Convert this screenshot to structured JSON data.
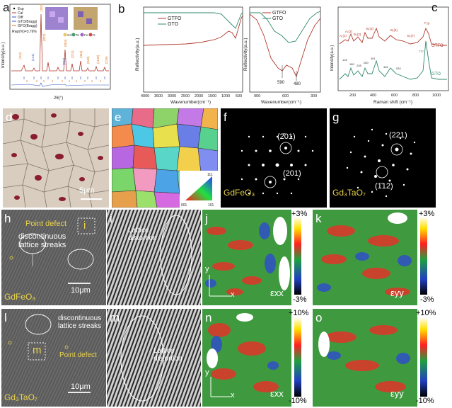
{
  "figure": {
    "panels": {
      "a": {
        "label": "a",
        "legend": [
          "Exp",
          "Cal",
          "Diff",
          "GTO(Bragg)",
          "GFO(Bragg)"
        ],
        "rwp": "Rwp(%)=3.76%",
        "xlabel": "2θ(°)",
        "ylabel": "Intensity(a.u.)",
        "peaks": [
          "(110)",
          "(121)",
          "(022)",
          "(202)",
          "(311)",
          "(004)",
          "(224)",
          "(404)",
          "(040)",
          "(1110)",
          "(226)"
        ],
        "atoms": [
          "Gd",
          "Ta",
          "Fe",
          "O"
        ]
      },
      "b": {
        "label": "b",
        "legend": [
          "GTFO",
          "GTO"
        ],
        "xlabel": "Wavenumber(cm⁻¹)",
        "ylabel": "Reflectivity(a.u.)",
        "xticks_left": [
          "4000",
          "3500",
          "3000",
          "2500",
          "2000",
          "1500",
          "1000",
          "500"
        ],
        "xticks_right": [
          "900",
          "600",
          "300"
        ],
        "annot": [
          "590",
          "480"
        ]
      },
      "c": {
        "label": "c",
        "xlabel": "Raman shift (cm⁻¹)",
        "ylabel": "Intensity(a.u.)",
        "xticks": [
          "200",
          "400",
          "600",
          "800",
          "1000"
        ],
        "curves": [
          "GTFO",
          "GTO"
        ],
        "modes": [
          "A₁(2)",
          "A₁(1)",
          "B₂(2)",
          "B₁(3)",
          "B₁(5)",
          "B₂(7)",
          "F₂g"
        ],
        "peaks": [
          "126",
          "180",
          "238",
          "280",
          "361",
          "439",
          "534",
          "777"
        ]
      },
      "d": {
        "label": "d"
      },
      "e": {
        "label": "e",
        "ipf": [
          "111",
          "001",
          "101"
        ]
      },
      "f": {
        "label": "f",
        "name": "GdFeO₃",
        "spots": [
          "(2̄01)",
          "(201)"
        ]
      },
      "g": {
        "label": "g",
        "name": "Gd₃TaO₇",
        "spots": [
          "(221)",
          "(1̄12)"
        ]
      },
      "h": {
        "label": "h",
        "name": "GdFeO₃",
        "scale": "10μm",
        "point_defect": "Point defect",
        "streaks": "discontinuous lattice streaks",
        "inset": "i"
      },
      "i": {
        "label": "i",
        "note": "Lattice distortion"
      },
      "j": {
        "label": "j",
        "max": "+3%",
        "min": "-3%",
        "eps": "εxx",
        "axis_x": "x",
        "axis_y": "y"
      },
      "k": {
        "label": "k",
        "max": "+3%",
        "min": "-3%",
        "eps": "εyy"
      },
      "l": {
        "label": "l",
        "name": "Gd₃TaO₇",
        "scale": "10μm",
        "streaks": "discontinuous lattice streaks",
        "point_defect": "Point defect",
        "inset": "m"
      },
      "m": {
        "label": "m",
        "note": "Lattice distortion"
      },
      "n": {
        "label": "n",
        "max": "+10%",
        "min": "-10%",
        "eps": "εxx",
        "axis_x": "x",
        "axis_y": "y"
      },
      "o": {
        "label": "o",
        "max": "+10%",
        "min": "-10%",
        "eps": "εyy"
      },
      "scalebar_d": "5μm"
    },
    "colors": {
      "gtfo": "#b03a2e",
      "gto": "#2f8a6a",
      "bragg_gto": "#3557c0",
      "bragg_gfo": "#e0731c",
      "ebsd_bg": "#d9cdbf",
      "defect": "#8b1e2e"
    }
  }
}
